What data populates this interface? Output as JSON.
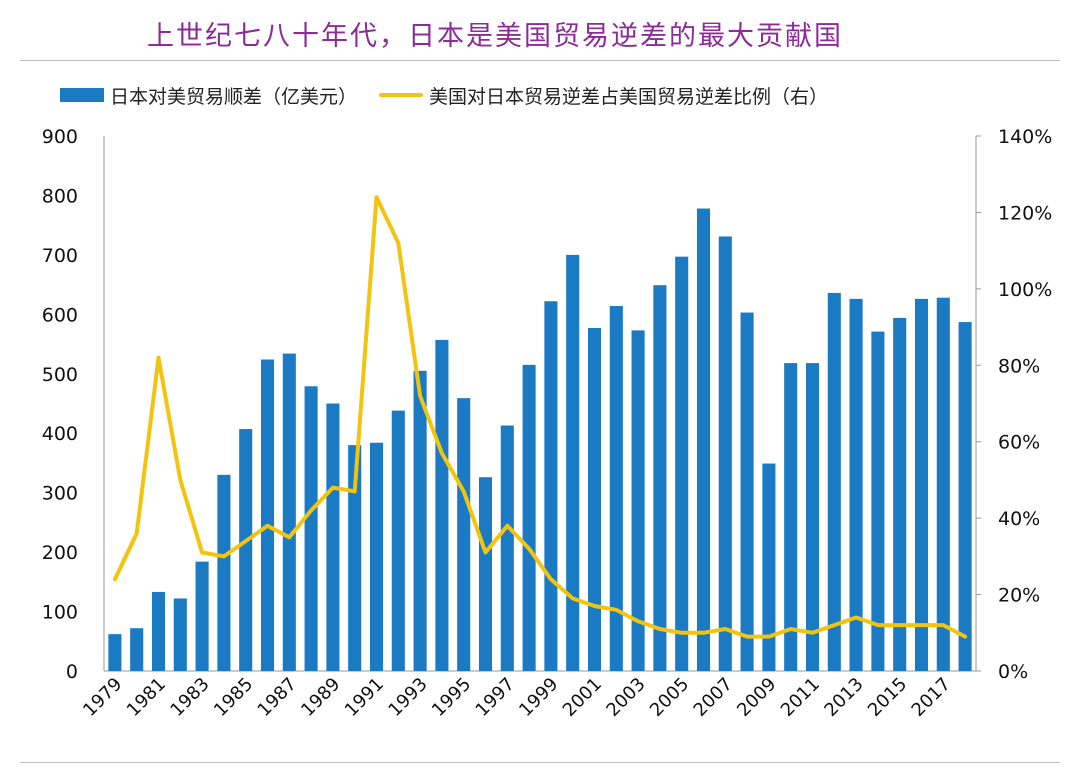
{
  "title": "上世纪七八十年代，日本是美国贸易逆差的最大贡献国",
  "colors": {
    "bar": "#1a7bc4",
    "line": "#f2c40f",
    "title": "#8B2C97"
  },
  "chart_data": {
    "type": "bar+line",
    "categories": [
      "1979",
      "1980",
      "1981",
      "1982",
      "1983",
      "1984",
      "1985",
      "1986",
      "1987",
      "1988",
      "1989",
      "1990",
      "1991",
      "1992",
      "1993",
      "1994",
      "1995",
      "1996",
      "1997",
      "1998",
      "1999",
      "2000",
      "2001",
      "2002",
      "2003",
      "2004",
      "2005",
      "2006",
      "2007",
      "2008",
      "2009",
      "2010",
      "2011",
      "2012",
      "2013",
      "2014",
      "2015",
      "2016",
      "2017",
      "2018"
    ],
    "x_tick_labels": [
      "1979",
      "1981",
      "1983",
      "1985",
      "1987",
      "1989",
      "1991",
      "1993",
      "1995",
      "1997",
      "1999",
      "2001",
      "2003",
      "2005",
      "2007",
      "2009",
      "2011",
      "2013",
      "2015",
      "2017"
    ],
    "series": [
      {
        "name": "日本对美贸易顺差（亿美元）",
        "type": "bar",
        "axis": "left",
        "values": [
          62,
          72,
          133,
          122,
          184,
          330,
          407,
          524,
          534,
          479,
          450,
          380,
          384,
          438,
          505,
          557,
          459,
          326,
          413,
          515,
          622,
          700,
          577,
          614,
          573,
          649,
          697,
          778,
          731,
          603,
          349,
          518,
          518,
          636,
          626,
          571,
          594,
          626,
          628,
          587
        ]
      },
      {
        "name": "美国对日本贸易逆差占美国贸易逆差比例（右）",
        "type": "line",
        "axis": "right",
        "values": [
          24,
          36,
          82,
          50,
          31,
          30,
          34,
          38,
          35,
          42,
          48,
          47,
          124,
          112,
          72,
          57,
          47,
          31,
          38,
          32,
          24,
          19,
          17,
          16,
          13,
          11,
          10,
          10,
          11,
          9,
          9,
          11,
          10,
          12,
          14,
          12,
          12,
          12,
          12,
          9
        ]
      }
    ],
    "left_axis": {
      "min": 0,
      "max": 900,
      "step": 100,
      "labels": [
        "0",
        "100",
        "200",
        "300",
        "400",
        "500",
        "600",
        "700",
        "800",
        "900"
      ]
    },
    "right_axis": {
      "min": 0,
      "max": 140,
      "step": 20,
      "labels": [
        "0%",
        "20%",
        "40%",
        "60%",
        "80%",
        "100%",
        "120%",
        "140%"
      ]
    },
    "grid": false,
    "legend_position": "top"
  }
}
